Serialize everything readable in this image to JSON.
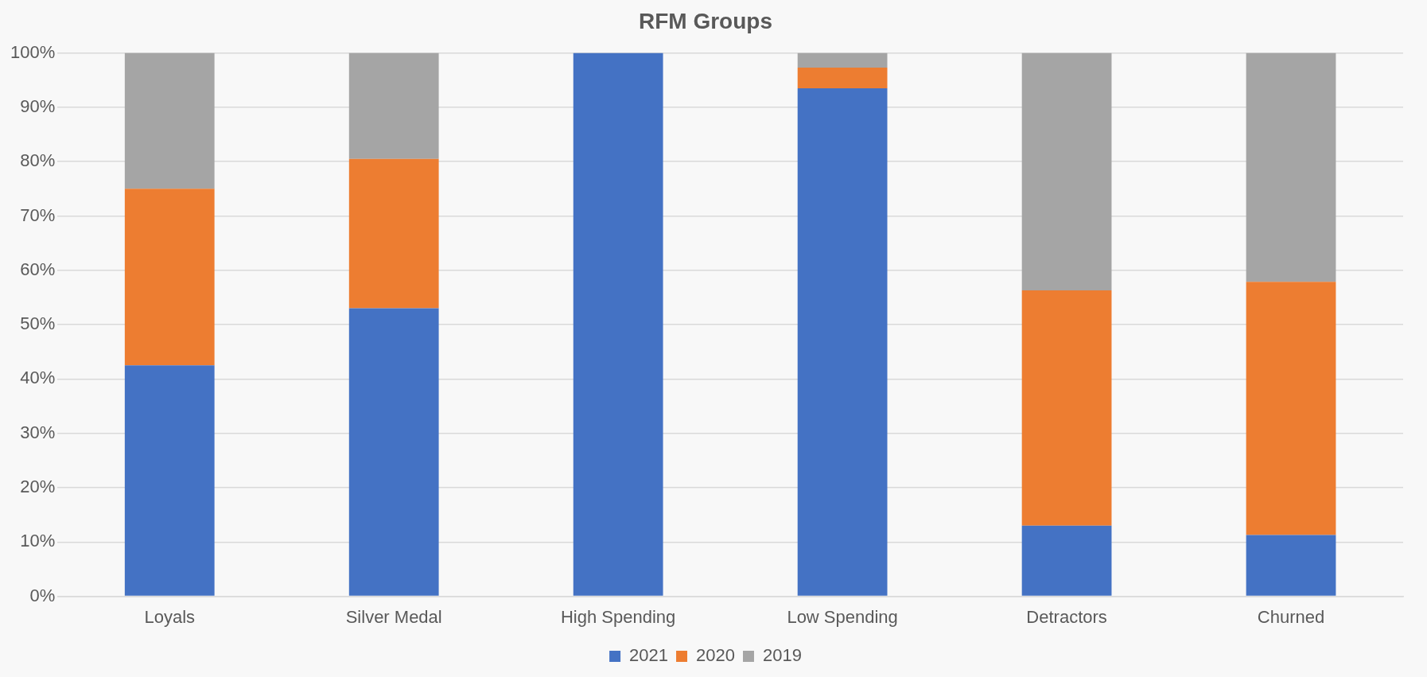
{
  "chart_data": {
    "type": "bar",
    "title": "RFM Groups",
    "stacked": true,
    "categories": [
      "Loyals",
      "Silver Medal",
      "High Spending",
      "Low Spending",
      "Detractors",
      "Churned"
    ],
    "series": [
      {
        "name": "2021",
        "color": "#4472c4",
        "values": [
          42.5,
          53,
          100,
          93.5,
          13,
          11.3
        ]
      },
      {
        "name": "2020",
        "color": "#ed7d31",
        "values": [
          32.5,
          27.5,
          0,
          3.8,
          43.3,
          46.6
        ]
      },
      {
        "name": "2019",
        "color": "#a5a5a5",
        "values": [
          25,
          19.5,
          0,
          2.7,
          43.7,
          42.1
        ]
      }
    ],
    "ylim": [
      0,
      100
    ],
    "yticks": [
      {
        "value": 0,
        "label": "0%"
      },
      {
        "value": 10,
        "label": "10%"
      },
      {
        "value": 20,
        "label": "20%"
      },
      {
        "value": 30,
        "label": "30%"
      },
      {
        "value": 40,
        "label": "40%"
      },
      {
        "value": 50,
        "label": "50%"
      },
      {
        "value": 60,
        "label": "60%"
      },
      {
        "value": 70,
        "label": "70%"
      },
      {
        "value": 80,
        "label": "80%"
      },
      {
        "value": 90,
        "label": "90%"
      },
      {
        "value": 100,
        "label": "100%"
      }
    ],
    "grid": "y",
    "legend": "bottom"
  }
}
